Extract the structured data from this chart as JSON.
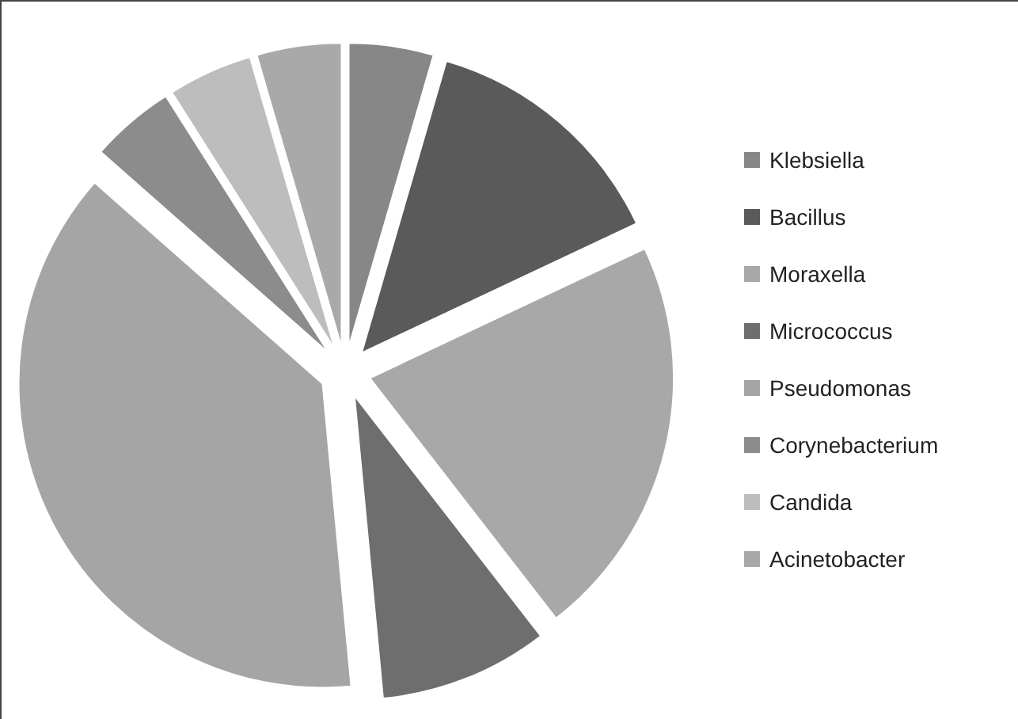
{
  "chart_data": {
    "type": "pie",
    "categories": [
      "Klebsiella",
      "Bacillus",
      "Moraxella",
      "Micrococcus",
      "Pseudomonas",
      "Corynebacterium",
      "Candida",
      "Acinetobacter"
    ],
    "values": [
      4.5,
      13.5,
      21.5,
      9,
      38,
      4.5,
      4.5,
      4.5
    ],
    "colors": [
      "#878787",
      "#5a5a5a",
      "#a8a8a8",
      "#6e6e6e",
      "#a5a5a5",
      "#8c8c8c",
      "#bdbdbd",
      "#a9a9a9"
    ],
    "legend": "right"
  }
}
